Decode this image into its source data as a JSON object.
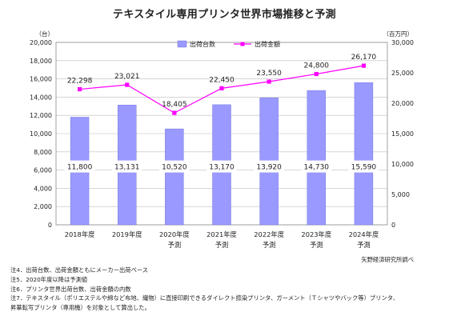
{
  "chart_data": {
    "type": "bar",
    "title": "テキスタイル専用プリンタ世界市場推移と予測",
    "categories": [
      [
        "2018年度"
      ],
      [
        "2019年度"
      ],
      [
        "2020年度",
        "予測"
      ],
      [
        "2021年度",
        "予測"
      ],
      [
        "2022年度",
        "予測"
      ],
      [
        "2023年度",
        "予測"
      ],
      [
        "2024年度",
        "予測"
      ]
    ],
    "left_axis": {
      "unit_label": "（台）",
      "ylim": [
        0,
        20000
      ],
      "ticks": [
        "0",
        "2,000",
        "4,000",
        "6,000",
        "8,000",
        "10,000",
        "12,000",
        "14,000",
        "16,000",
        "18,000",
        "20,000"
      ]
    },
    "right_axis": {
      "unit_label": "（百万円）",
      "ylim": [
        0,
        30000
      ],
      "ticks": [
        "0",
        "5,000",
        "10,000",
        "15,000",
        "20,000",
        "25,000",
        "30,000"
      ]
    },
    "series": [
      {
        "name": "出荷台数",
        "type": "bar",
        "axis": "left",
        "color": "#9999ff",
        "values": [
          11800,
          13131,
          10520,
          13170,
          13920,
          14730,
          15590
        ],
        "labels": [
          "11,800",
          "13,131",
          "10,520",
          "13,170",
          "13,920",
          "14,730",
          "15,590"
        ]
      },
      {
        "name": "出荷金額",
        "type": "line",
        "axis": "right",
        "color": "#ff00ff",
        "values": [
          22298,
          23021,
          18405,
          22450,
          23550,
          24800,
          26170
        ],
        "labels": [
          "22,298",
          "23,021",
          "18,405",
          "22,450",
          "23,550",
          "24,800",
          "26,170"
        ]
      }
    ],
    "grid": true,
    "legend": "top"
  },
  "notes": [
    "注4．出荷台数、出荷金額ともにメーカー出荷ベース",
    "注5．2020年度以降は予測値",
    "注6．プリンタ世界出荷台数、出荷金額の内数",
    "注7．テキスタイル（ポリエステルや綿など布地、織物）に直接印刷できるダイレクト捺染プリンタ、ガーメント（Ｔシャツやバック等）プリンタ、",
    "昇華転写プリンタ（専用機）を対象として算出した。"
  ],
  "source": "矢野経済研究所調べ"
}
